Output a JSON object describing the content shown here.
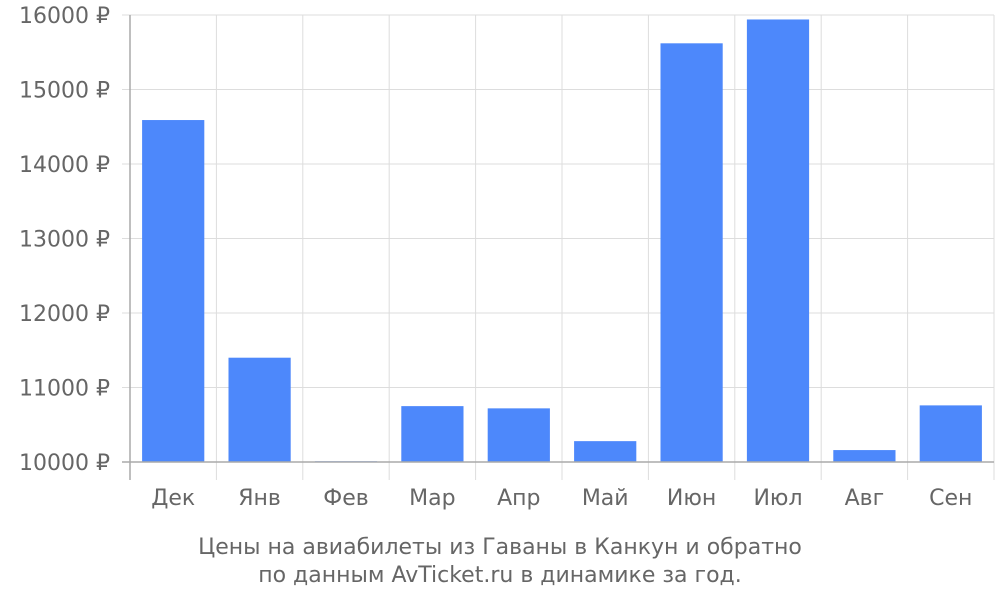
{
  "chart_data": {
    "type": "bar",
    "categories": [
      "Дек",
      "Янв",
      "Фев",
      "Мар",
      "Апр",
      "Май",
      "Июн",
      "Июл",
      "Авг",
      "Сен"
    ],
    "values": [
      14590,
      11400,
      10010,
      10750,
      10720,
      10280,
      15620,
      15940,
      10160,
      10760
    ],
    "ylim": [
      10000,
      16000
    ],
    "yticks": [
      10000,
      11000,
      12000,
      13000,
      14000,
      15000,
      16000
    ],
    "ytick_suffix": " ₽",
    "grid": true,
    "bar_color": "#4d88fb",
    "grid_color": "#dddddd",
    "axis_color": "#aaaaaa",
    "text_color": "#666666"
  },
  "caption": {
    "line1": "Цены на авиабилеты из Гаваны в Канкун и обратно",
    "line2": "по данным AvTicket.ru в динамике за год."
  }
}
